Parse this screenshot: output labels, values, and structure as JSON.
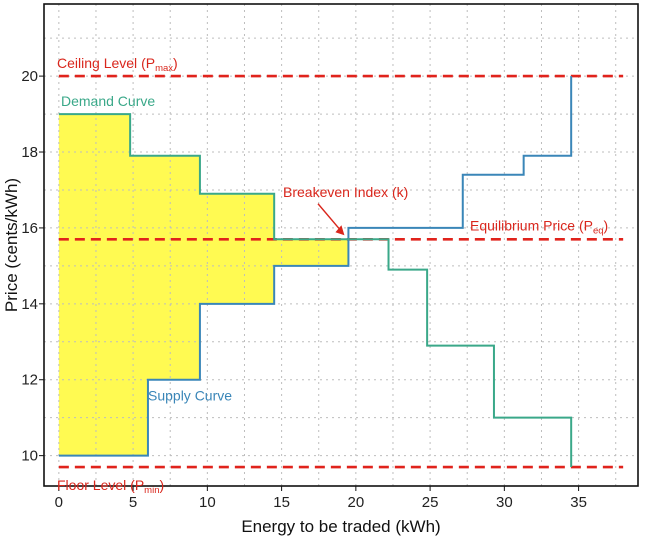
{
  "chart_data": {
    "type": "line",
    "title": "",
    "xlabel": "Energy to be traded (kWh)",
    "ylabel": "Price (cents/kWh)",
    "xlim": [
      -1,
      39
    ],
    "ylim": [
      9.2,
      21.9
    ],
    "xticks": [
      0,
      5,
      10,
      15,
      20,
      25,
      30,
      35
    ],
    "yticks": [
      10,
      12,
      14,
      16,
      18,
      20
    ],
    "grid": true,
    "colors": {
      "supply": "#3a86b8",
      "demand": "#3aa889",
      "reference": "#e0231c",
      "annotation": "#d9261c",
      "surplus_fill": "#fff93a"
    },
    "series": [
      {
        "name": "Supply Curve",
        "style": "step",
        "x": [
          0,
          6,
          6,
          9.5,
          9.5,
          14.5,
          14.5,
          19.5,
          19.5,
          27.2,
          27.2,
          31.3,
          31.3,
          34.5,
          34.5
        ],
        "y": [
          10,
          10,
          12,
          12,
          14,
          14,
          15,
          15,
          16,
          16,
          17.4,
          17.4,
          17.9,
          17.9,
          20
        ]
      },
      {
        "name": "Demand Curve",
        "style": "step",
        "x": [
          0,
          4.8,
          4.8,
          9.5,
          9.5,
          14.5,
          14.5,
          19.5,
          19.5,
          22.2,
          22.2,
          24.8,
          24.8,
          29.3,
          29.3,
          34.5,
          34.5
        ],
        "y": [
          19,
          19,
          17.9,
          17.9,
          16.9,
          16.9,
          15.7,
          15.7,
          15.7,
          15.7,
          14.9,
          14.9,
          12.9,
          12.9,
          11,
          11,
          9.7
        ]
      }
    ],
    "reference_lines": [
      {
        "name": "Ceiling Level",
        "symbol": "P",
        "subscript": "max",
        "y": 20
      },
      {
        "name": "Equilibrium Price",
        "symbol": "P",
        "subscript": "eq",
        "y": 15.7
      },
      {
        "name": "Floor Level",
        "symbol": "P",
        "subscript": "min",
        "y": 9.7
      }
    ],
    "annotations": [
      {
        "text": "Breakeven Index (k)",
        "x": 19.5,
        "y": 15.7
      }
    ],
    "surplus_region": {
      "x": [
        0,
        4.8,
        4.8,
        9.5,
        9.5,
        14.5,
        14.5,
        19.5,
        19.5,
        14.5,
        14.5,
        9.5,
        9.5,
        6,
        6,
        0
      ],
      "y": [
        19,
        19,
        17.9,
        17.9,
        16.9,
        16.9,
        15.7,
        15.7,
        15,
        15,
        14,
        14,
        12,
        12,
        10,
        10
      ]
    }
  }
}
